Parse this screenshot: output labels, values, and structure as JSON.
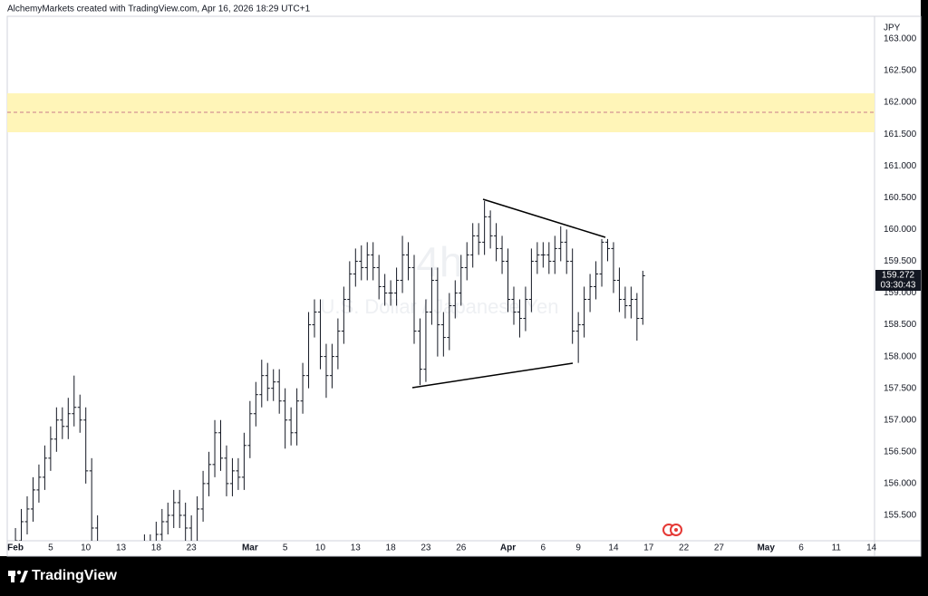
{
  "chart_data": {
    "type": "ohlc",
    "title": "AlchemyMarkets created with TradingView.com, Apr 16, 2026 18:29 UTC+1",
    "interval": "4h",
    "symbol_description": "U.S. Dollar / Japanese Yen",
    "currency": "JPY",
    "countdown": "03:30:43",
    "brand": "TradingView",
    "color": "#131722",
    "grid": false,
    "ylim": [
      155.1,
      163.356
    ],
    "xlim": [
      -0.7,
      73.26
    ],
    "yticks": [
      {
        "value": 155.5,
        "label": "155.500"
      },
      {
        "value": 156,
        "label": "156.000"
      },
      {
        "value": 156.5,
        "label": "156.500"
      },
      {
        "value": 157,
        "label": "157.000"
      },
      {
        "value": 157.5,
        "label": "157.500"
      },
      {
        "value": 158,
        "label": "158.000"
      },
      {
        "value": 158.5,
        "label": "158.500"
      },
      {
        "value": 159,
        "label": "159.000"
      },
      {
        "value": 159.5,
        "label": "159.500"
      },
      {
        "value": 160,
        "label": "160.000"
      },
      {
        "value": 160.5,
        "label": "160.500"
      },
      {
        "value": 161,
        "label": "161.000"
      },
      {
        "value": 161.5,
        "label": "161.500"
      },
      {
        "value": 162,
        "label": "162.000"
      },
      {
        "value": 162.5,
        "label": "162.500"
      },
      {
        "value": 163,
        "label": "163.000"
      }
    ],
    "xticks": [
      {
        "value": 0,
        "label": "Feb"
      },
      {
        "value": 3,
        "label": "5"
      },
      {
        "value": 6,
        "label": "10"
      },
      {
        "value": 9,
        "label": "13"
      },
      {
        "value": 12,
        "label": "18"
      },
      {
        "value": 15,
        "label": "23"
      },
      {
        "value": 20,
        "label": "Mar"
      },
      {
        "value": 23,
        "label": "5"
      },
      {
        "value": 26,
        "label": "10"
      },
      {
        "value": 29,
        "label": "13"
      },
      {
        "value": 32,
        "label": "18"
      },
      {
        "value": 35,
        "label": "23"
      },
      {
        "value": 38,
        "label": "26"
      },
      {
        "value": 42,
        "label": "Apr"
      },
      {
        "value": 45,
        "label": "6"
      },
      {
        "value": 48,
        "label": "9"
      },
      {
        "value": 51,
        "label": "14"
      },
      {
        "value": 54,
        "label": "17"
      },
      {
        "value": 57,
        "label": "22"
      },
      {
        "value": 60,
        "label": "27"
      },
      {
        "value": 64,
        "label": "May"
      },
      {
        "value": 67,
        "label": "6"
      },
      {
        "value": 70,
        "label": "11"
      },
      {
        "value": 73,
        "label": "14"
      }
    ],
    "x": [
      0,
      0.5,
      1,
      1.5,
      2,
      2.5,
      3,
      3.5,
      4,
      4.5,
      5,
      5.5,
      6,
      6.5,
      7,
      7.5,
      8,
      8.5,
      9,
      9.5,
      10,
      10.5,
      11,
      11.5,
      12,
      12.5,
      13,
      13.5,
      14,
      14.5,
      15,
      15.5,
      16,
      16.5,
      17,
      17.5,
      18,
      18.5,
      19,
      19.5,
      20,
      20.5,
      21,
      21.5,
      22,
      22.5,
      23,
      23.5,
      24,
      24.5,
      25,
      25.5,
      26,
      26.5,
      27,
      27.5,
      28,
      28.5,
      29,
      29.5,
      30,
      30.5,
      31,
      31.5,
      32,
      32.5,
      33,
      33.5,
      34,
      34.5,
      35,
      35.5,
      36,
      36.5,
      37,
      37.5,
      38,
      38.5,
      39,
      39.5,
      40,
      40.5,
      41,
      41.5,
      42,
      42.5,
      43,
      43.5,
      44,
      44.5,
      45,
      45.5,
      46,
      46.5,
      47,
      47.5,
      48,
      48.5,
      49,
      49.5,
      50,
      50.5,
      51,
      51.5,
      52,
      52.5,
      53,
      53.5
    ],
    "open": [
      155.0,
      155.1,
      155.4,
      155.6,
      155.9,
      156.1,
      156.4,
      156.7,
      157.0,
      156.9,
      157.1,
      157.2,
      157.0,
      156.2,
      155.3,
      154.8,
      154.5,
      154.3,
      154.6,
      154.4,
      154.2,
      154.5,
      154.8,
      155.0,
      154.9,
      155.2,
      155.4,
      155.5,
      155.7,
      155.5,
      155.3,
      155.0,
      155.6,
      156.0,
      156.3,
      156.8,
      156.4,
      156.0,
      156.2,
      156.1,
      156.6,
      157.1,
      157.4,
      157.7,
      157.5,
      157.6,
      157.3,
      157.0,
      156.8,
      157.3,
      157.7,
      158.5,
      158.7,
      158.0,
      157.7,
      158.0,
      158.4,
      158.9,
      159.3,
      159.5,
      159.4,
      159.6,
      159.4,
      159.1,
      159.0,
      159.0,
      159.2,
      159.6,
      159.4,
      158.4,
      157.8,
      158.7,
      159.2,
      158.5,
      158.3,
      158.8,
      159.0,
      159.4,
      159.6,
      159.9,
      159.8,
      160.2,
      159.9,
      159.7,
      159.5,
      158.9,
      158.7,
      158.6,
      158.9,
      159.5,
      159.6,
      159.6,
      159.5,
      159.7,
      159.8,
      159.5,
      158.4,
      158.5,
      158.9,
      159.1,
      159.3,
      159.8,
      159.7,
      159.2,
      158.9,
      158.8,
      158.9,
      158.6
    ],
    "high": [
      155.3,
      155.6,
      155.8,
      156.1,
      156.3,
      156.6,
      156.9,
      157.2,
      157.2,
      157.35,
      157.7,
      157.4,
      157.2,
      156.4,
      155.5,
      155.0,
      154.7,
      154.8,
      154.8,
      154.6,
      154.7,
      155.0,
      155.2,
      155.2,
      155.4,
      155.6,
      155.7,
      155.9,
      155.9,
      155.7,
      155.5,
      155.8,
      156.2,
      156.5,
      157.0,
      157.0,
      156.6,
      156.4,
      156.4,
      156.8,
      157.3,
      157.6,
      157.95,
      157.9,
      157.8,
      157.8,
      157.5,
      157.2,
      157.5,
      157.9,
      158.7,
      158.9,
      158.9,
      158.2,
      158.2,
      158.6,
      159.1,
      159.5,
      159.7,
      159.75,
      159.8,
      159.8,
      159.6,
      159.3,
      159.2,
      159.4,
      159.9,
      159.8,
      159.6,
      158.6,
      158.9,
      159.4,
      159.4,
      158.7,
      159.0,
      159.2,
      159.6,
      159.8,
      160.1,
      160.1,
      160.45,
      160.3,
      160.1,
      159.9,
      159.7,
      159.1,
      158.9,
      159.1,
      159.7,
      159.8,
      159.8,
      159.8,
      159.9,
      160.05,
      160.0,
      159.7,
      158.7,
      159.1,
      159.3,
      159.5,
      159.85,
      159.85,
      159.8,
      159.4,
      159.1,
      159.1,
      159.0,
      159.35
    ],
    "low": [
      154.8,
      154.9,
      155.2,
      155.4,
      155.7,
      155.9,
      156.2,
      156.5,
      156.7,
      156.7,
      156.9,
      156.8,
      156.0,
      155.1,
      154.6,
      154.3,
      154.1,
      154.1,
      154.2,
      154.0,
      154.0,
      154.3,
      154.6,
      154.7,
      154.7,
      155.0,
      155.2,
      155.3,
      155.3,
      155.1,
      154.8,
      154.8,
      155.4,
      155.8,
      156.1,
      156.2,
      155.8,
      155.8,
      155.9,
      155.9,
      156.4,
      156.9,
      157.2,
      157.3,
      157.3,
      157.1,
      156.55,
      156.6,
      156.6,
      157.1,
      157.5,
      158.3,
      157.8,
      157.35,
      157.5,
      157.8,
      158.2,
      158.7,
      159.1,
      159.2,
      159.2,
      159.2,
      158.9,
      158.8,
      158.8,
      158.8,
      159.0,
      159.2,
      158.2,
      157.55,
      157.6,
      158.5,
      158.0,
      158.0,
      158.1,
      158.6,
      158.8,
      159.2,
      159.4,
      159.6,
      159.6,
      159.7,
      159.5,
      159.3,
      158.7,
      158.5,
      158.3,
      158.4,
      158.7,
      159.3,
      159.4,
      159.3,
      159.3,
      159.5,
      159.3,
      158.2,
      157.9,
      158.3,
      158.7,
      158.9,
      159.1,
      159.5,
      159.0,
      158.7,
      158.6,
      158.6,
      158.25,
      158.5
    ],
    "close": [
      155.1,
      155.4,
      155.6,
      155.9,
      156.1,
      156.4,
      156.7,
      157.0,
      156.9,
      157.1,
      157.2,
      157.0,
      156.2,
      155.3,
      154.8,
      154.5,
      154.3,
      154.6,
      154.4,
      154.2,
      154.5,
      154.8,
      155.0,
      154.9,
      155.2,
      155.4,
      155.5,
      155.7,
      155.5,
      155.3,
      155.0,
      155.6,
      156.0,
      156.3,
      156.8,
      156.4,
      156.0,
      156.2,
      156.1,
      156.6,
      157.1,
      157.4,
      157.7,
      157.5,
      157.6,
      157.3,
      157.0,
      156.8,
      157.3,
      157.7,
      158.5,
      158.7,
      158.0,
      157.7,
      158.0,
      158.4,
      158.9,
      159.3,
      159.5,
      159.4,
      159.6,
      159.4,
      159.1,
      159.0,
      159.0,
      159.2,
      159.6,
      159.4,
      158.4,
      157.8,
      158.7,
      159.2,
      158.5,
      158.3,
      158.8,
      159.0,
      159.4,
      159.6,
      159.9,
      159.8,
      160.2,
      159.9,
      159.7,
      159.5,
      158.9,
      158.7,
      158.6,
      158.9,
      159.5,
      159.6,
      159.6,
      159.5,
      159.7,
      159.8,
      159.5,
      158.4,
      158.5,
      158.9,
      159.1,
      159.3,
      159.8,
      159.7,
      159.2,
      158.9,
      158.8,
      158.9,
      158.6,
      159.272
    ]
  }
}
